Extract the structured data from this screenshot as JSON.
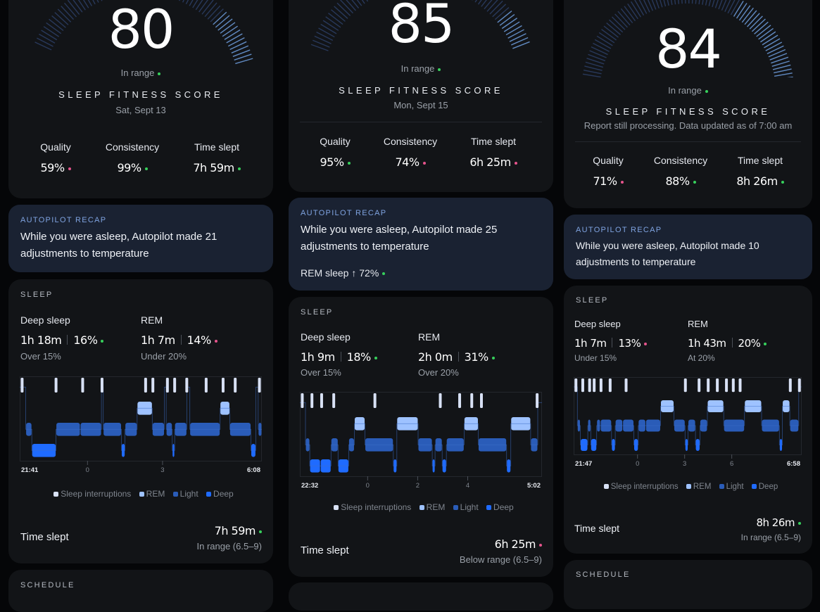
{
  "colors": {
    "accent": "#7fa3e0",
    "good": "#37d05c",
    "bad": "#e6548c",
    "interruption": "#d8e1f5",
    "rem": "#9ec2ff",
    "light": "#2a5cb8",
    "deep": "#1f6bff"
  },
  "columns": [
    {
      "score": "80",
      "status": "In range",
      "status_color": "g",
      "title": "SLEEP FITNESS SCORE",
      "date": "Sat, Sept 13",
      "metrics": [
        {
          "label": "Quality",
          "value": "59%",
          "c": "p"
        },
        {
          "label": "Consistency",
          "value": "99%",
          "c": "g"
        },
        {
          "label": "Time slept",
          "value": "7h 59m",
          "c": "g"
        }
      ],
      "recap": {
        "title": "AUTOPILOT RECAP",
        "text": "While you were asleep, Autopilot made 21 adjustments to temperature",
        "rem": null
      },
      "sleep": {
        "title": "SLEEP",
        "deep_label": "Deep sleep",
        "deep_time": "1h 18m",
        "deep_pct": "16%",
        "deep_c": "g",
        "deep_sub": "Over 15%",
        "rem_label": "REM",
        "rem_time": "1h 7m",
        "rem_pct": "14%",
        "rem_c": "p",
        "rem_sub": "Under 20%"
      },
      "axis": {
        "start": "21:41",
        "end": "6:08",
        "ticks": [
          "0",
          "3"
        ]
      },
      "legend": [
        "Sleep interruptions",
        "REM",
        "Light",
        "Deep"
      ],
      "time_slept": {
        "label": "Time slept",
        "value": "7h 59m",
        "c": "g",
        "sub": "In range (6.5–9)"
      },
      "next": "SCHEDULE"
    },
    {
      "score": "85",
      "status": "In range",
      "status_color": "g",
      "title": "SLEEP FITNESS SCORE",
      "date": "Mon, Sept 15",
      "metrics": [
        {
          "label": "Quality",
          "value": "95%",
          "c": "g"
        },
        {
          "label": "Consistency",
          "value": "74%",
          "c": "p"
        },
        {
          "label": "Time slept",
          "value": "6h 25m",
          "c": "p"
        }
      ],
      "recap": {
        "title": "AUTOPILOT RECAP",
        "text": "While you were asleep, Autopilot made 25 adjustments to temperature",
        "rem": "REM sleep  ↑ 72%"
      },
      "sleep": {
        "title": "SLEEP",
        "deep_label": "Deep sleep",
        "deep_time": "1h 9m",
        "deep_pct": "18%",
        "deep_c": "g",
        "deep_sub": "Over 15%",
        "rem_label": "REM",
        "rem_time": "2h 0m",
        "rem_pct": "31%",
        "rem_c": "g",
        "rem_sub": "Over 20%"
      },
      "axis": {
        "start": "22:32",
        "end": "5:02",
        "ticks": [
          "0",
          "2",
          "4"
        ]
      },
      "legend": [
        "Sleep interruptions",
        "REM",
        "Light",
        "Deep"
      ],
      "time_slept": {
        "label": "Time slept",
        "value": "6h 25m",
        "c": "p",
        "sub": "Below range (6.5–9)"
      },
      "next": ""
    },
    {
      "score": "84",
      "status": "In range",
      "status_color": "g",
      "title": "SLEEP FITNESS SCORE",
      "date": "Report still processing. Data updated as of 7:00 am",
      "metrics": [
        {
          "label": "Quality",
          "value": "71%",
          "c": "p"
        },
        {
          "label": "Consistency",
          "value": "88%",
          "c": "g"
        },
        {
          "label": "Time slept",
          "value": "8h 26m",
          "c": "g"
        }
      ],
      "recap": {
        "title": "AUTOPILOT RECAP",
        "text": "While you were asleep, Autopilot made 10 adjustments to temperature",
        "rem": null
      },
      "sleep": {
        "title": "SLEEP",
        "deep_label": "Deep sleep",
        "deep_time": "1h 7m",
        "deep_pct": "13%",
        "deep_c": "p",
        "deep_sub": "Under 15%",
        "rem_label": "REM",
        "rem_time": "1h 43m",
        "rem_pct": "20%",
        "rem_c": "g",
        "rem_sub": "At 20%"
      },
      "axis": {
        "start": "21:47",
        "end": "6:58",
        "ticks": [
          "0",
          "3",
          "6"
        ]
      },
      "legend": [
        "Sleep interruptions",
        "REM",
        "Light",
        "Deep"
      ],
      "time_slept": {
        "label": "Time slept",
        "value": "8h 26m",
        "c": "g",
        "sub": "In range (6.5–9)"
      },
      "next": "SCHEDULE"
    }
  ]
}
